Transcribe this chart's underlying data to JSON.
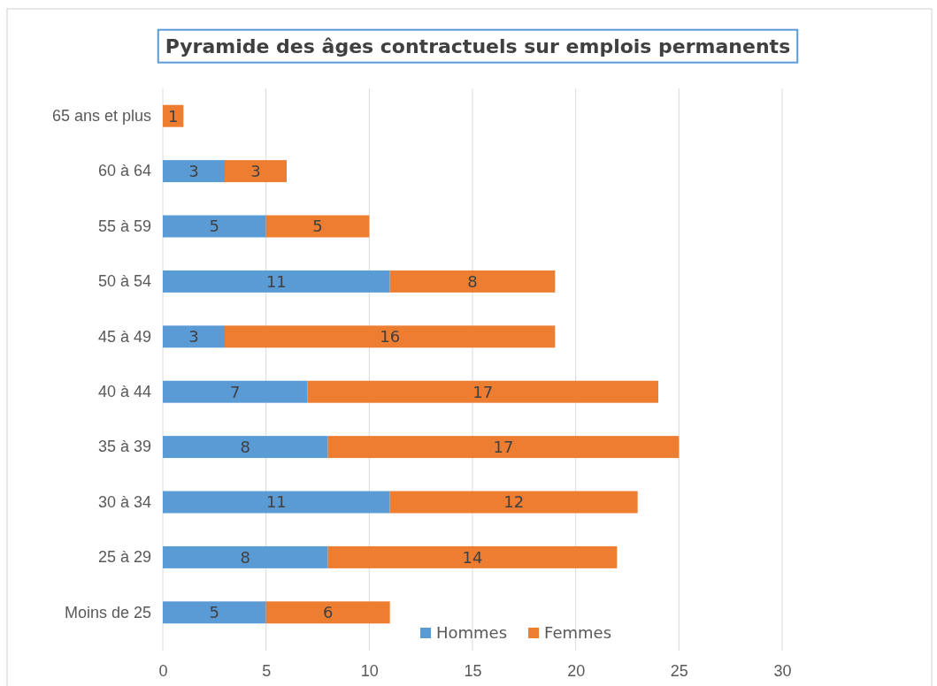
{
  "chart_data": {
    "type": "bar",
    "orientation": "horizontal",
    "stacked": true,
    "title": "Pyramide des âges contractuels sur emplois permanents",
    "categories": [
      "65 ans et plus",
      "60 à 64",
      "55 à 59",
      "50 à 54",
      "45 à 49",
      "40 à 44",
      "35 à 39",
      "30 à 34",
      "25 à 29",
      "Moins de 25"
    ],
    "series": [
      {
        "name": "Hommes",
        "color": "#5b9bd5",
        "values": [
          null,
          3,
          5,
          11,
          3,
          7,
          8,
          11,
          8,
          5
        ]
      },
      {
        "name": "Femmes",
        "color": "#ed7d31",
        "values": [
          1,
          3,
          5,
          8,
          16,
          17,
          17,
          12,
          14,
          6
        ]
      }
    ],
    "xlim": [
      0,
      30
    ],
    "xticks": [
      0,
      5,
      10,
      15,
      20,
      25,
      30
    ],
    "grid": "x",
    "legend": "bottom",
    "data_labels": true
  }
}
